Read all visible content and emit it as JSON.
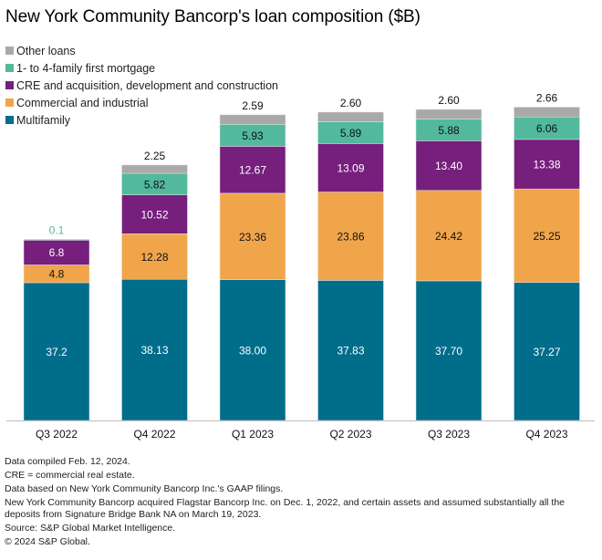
{
  "chart_data": {
    "type": "bar",
    "stacked": true,
    "title": "New York Community Bancorp's loan composition ($B)",
    "xlabel": "",
    "ylabel": "",
    "grid": false,
    "legend_position": "top-left",
    "categories": [
      "Q3 2022",
      "Q4 2022",
      "Q1 2023",
      "Q2 2023",
      "Q3 2023",
      "Q4 2023"
    ],
    "series": [
      {
        "name": "Multifamily",
        "color": "#006d8a",
        "label_color": "#ffffff",
        "values": [
          37.2,
          38.13,
          38.0,
          37.83,
          37.7,
          37.27
        ],
        "labels": [
          "37.2",
          "38.13",
          "38.00",
          "37.83",
          "37.70",
          "37.27"
        ]
      },
      {
        "name": "Commercial and industrial",
        "color": "#f0a54b",
        "label_color": "#111111",
        "values": [
          4.8,
          12.28,
          23.36,
          23.86,
          24.42,
          25.25
        ],
        "labels": [
          "4.8",
          "12.28",
          "23.36",
          "23.86",
          "24.42",
          "25.25"
        ]
      },
      {
        "name": "CRE and acquisition, development and construction",
        "color": "#761f7d",
        "label_color": "#ffffff",
        "values": [
          6.8,
          10.52,
          12.67,
          13.09,
          13.4,
          13.38
        ],
        "labels": [
          "6.8",
          "10.52",
          "12.67",
          "13.09",
          "13.40",
          "13.38"
        ]
      },
      {
        "name": "1- to 4-family first mortgage",
        "color": "#52b99d",
        "label_color": "#111111",
        "values": [
          0.1,
          5.82,
          5.93,
          5.89,
          5.88,
          6.06
        ],
        "labels": [
          "0.1",
          "5.82",
          "5.93",
          "5.89",
          "5.88",
          "6.06"
        ]
      },
      {
        "name": "Other loans",
        "color": "#a9a9a9",
        "label_color": "#111111",
        "values": [
          0,
          2.25,
          2.59,
          2.6,
          2.6,
          2.66
        ],
        "labels": [
          "",
          "2.25",
          "2.59",
          "2.60",
          "2.60",
          "2.66"
        ]
      }
    ],
    "ylim": [
      0,
      90
    ]
  },
  "legend_order": [
    4,
    3,
    2,
    1,
    0
  ],
  "notes": [
    "Data compiled Feb. 12, 2024.",
    "CRE = commercial real estate.",
    "Data based on New York Community Bancorp Inc.'s GAAP filings.",
    "New York Community Bancorp acquired Flagstar Bancorp Inc. on Dec. 1, 2022, and certain assets and assumed substantially all the deposits from Signature Bridge Bank NA on March 19, 2023.",
    "Source: S&P Global Market Intelligence.",
    "© 2024 S&P Global."
  ]
}
